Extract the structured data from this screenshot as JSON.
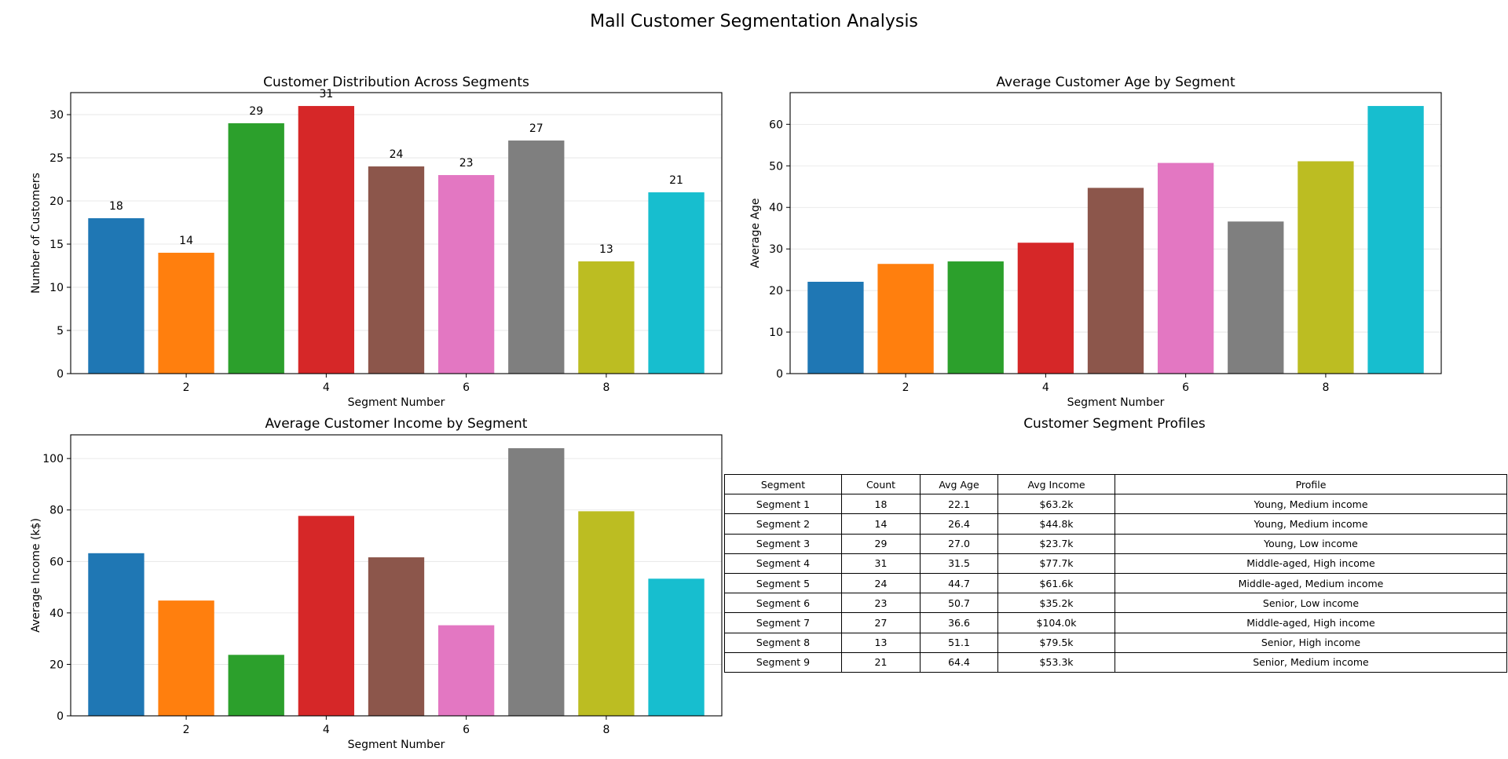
{
  "figure": {
    "title": "Mall Customer Segmentation Analysis"
  },
  "colors": [
    "#1f77b4",
    "#ff7f0e",
    "#2ca02c",
    "#d62728",
    "#8c564b",
    "#e377c2",
    "#7f7f7f",
    "#bcbd22",
    "#17becf"
  ],
  "chart_data": [
    {
      "type": "bar",
      "title": "Customer Distribution Across Segments",
      "xlabel": "Segment Number",
      "ylabel": "Number of Customers",
      "categories": [
        1,
        2,
        3,
        4,
        5,
        6,
        7,
        8,
        9
      ],
      "values": [
        18,
        14,
        29,
        31,
        24,
        23,
        27,
        13,
        21
      ],
      "data_labels": true,
      "xticks": [
        2,
        4,
        6,
        8
      ],
      "yticks": [
        0,
        5,
        10,
        15,
        20,
        25,
        30
      ],
      "ylim": [
        0,
        32.55
      ],
      "xlim": [
        0.35,
        9.65
      ],
      "grid": "y"
    },
    {
      "type": "bar",
      "title": "Average Customer Age by Segment",
      "xlabel": "Segment Number",
      "ylabel": "Average Age",
      "categories": [
        1,
        2,
        3,
        4,
        5,
        6,
        7,
        8,
        9
      ],
      "values": [
        22.1,
        26.4,
        27.0,
        31.5,
        44.7,
        50.7,
        36.6,
        51.1,
        64.4
      ],
      "data_labels": false,
      "xticks": [
        2,
        4,
        6,
        8
      ],
      "yticks": [
        0,
        10,
        20,
        30,
        40,
        50,
        60
      ],
      "ylim": [
        0,
        67.62
      ],
      "xlim": [
        0.35,
        9.65
      ],
      "grid": "y"
    },
    {
      "type": "bar",
      "title": "Average Customer Income by Segment",
      "xlabel": "Segment Number",
      "ylabel": "Average Income (k$)",
      "categories": [
        1,
        2,
        3,
        4,
        5,
        6,
        7,
        8,
        9
      ],
      "values": [
        63.2,
        44.8,
        23.7,
        77.7,
        61.6,
        35.2,
        104.0,
        79.5,
        53.3
      ],
      "data_labels": false,
      "xticks": [
        2,
        4,
        6,
        8
      ],
      "yticks": [
        0,
        20,
        40,
        60,
        80,
        100
      ],
      "ylim": [
        0,
        109.2
      ],
      "xlim": [
        0.35,
        9.65
      ],
      "grid": "y"
    },
    {
      "type": "table",
      "title": "Customer Segment Profiles",
      "columns": [
        "Segment",
        "Count",
        "Avg Age",
        "Avg Income",
        "Profile"
      ],
      "rows": [
        [
          "Segment 1",
          "18",
          "22.1",
          "$63.2k",
          "Young, Medium income"
        ],
        [
          "Segment 2",
          "14",
          "26.4",
          "$44.8k",
          "Young, Medium income"
        ],
        [
          "Segment 3",
          "29",
          "27.0",
          "$23.7k",
          "Young, Low income"
        ],
        [
          "Segment 4",
          "31",
          "31.5",
          "$77.7k",
          "Middle-aged, High income"
        ],
        [
          "Segment 5",
          "24",
          "44.7",
          "$61.6k",
          "Middle-aged, Medium income"
        ],
        [
          "Segment 6",
          "23",
          "50.7",
          "$35.2k",
          "Senior, Low income"
        ],
        [
          "Segment 7",
          "27",
          "36.6",
          "$104.0k",
          "Middle-aged, High income"
        ],
        [
          "Segment 8",
          "13",
          "51.1",
          "$79.5k",
          "Senior, High income"
        ],
        [
          "Segment 9",
          "21",
          "64.4",
          "$53.3k",
          "Senior, Medium income"
        ]
      ]
    }
  ]
}
